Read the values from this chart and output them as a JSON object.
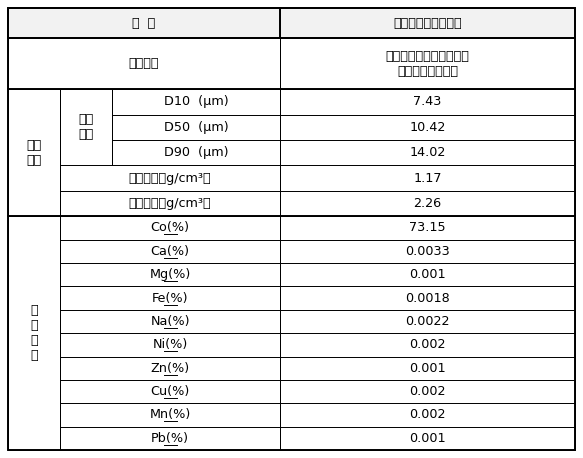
{
  "title_col1": "项  目",
  "title_col2": "质量要求、检测结果",
  "appearance_label": "表观质量",
  "appearance_value": "灰黑色粉末，干燥洁净无\n夹杂物，色泽一致",
  "phys_label": "物理\n性能",
  "laser_label": "激光\n粒度",
  "chem_label": "化\n学\n成\n份",
  "physical_items": [
    [
      "D10  (μm)",
      "7.43"
    ],
    [
      "D50  (μm)",
      "10.42"
    ],
    [
      "D90  (μm)",
      "14.02"
    ],
    [
      "松装密度（g/cm³）",
      "1.17"
    ],
    [
      "振实密度（g/cm³）",
      "2.26"
    ]
  ],
  "chem_items": [
    [
      "Co(%)",
      "73.15"
    ],
    [
      "Ca(%)",
      "0.0033"
    ],
    [
      "Mg(%)",
      "0.001"
    ],
    [
      "Fe(%)",
      "0.0018"
    ],
    [
      "Na(%)",
      "0.0022"
    ],
    [
      "Ni(%)",
      "0.002"
    ],
    [
      "Zn(%)",
      "0.001"
    ],
    [
      "Cu(%)",
      "0.002"
    ],
    [
      "Mn(%)",
      "0.002"
    ],
    [
      "Pb(%)",
      "0.001"
    ]
  ],
  "bg": "#ffffff",
  "border": "#000000",
  "fig_w": 5.83,
  "fig_h": 4.58,
  "dpi": 100
}
